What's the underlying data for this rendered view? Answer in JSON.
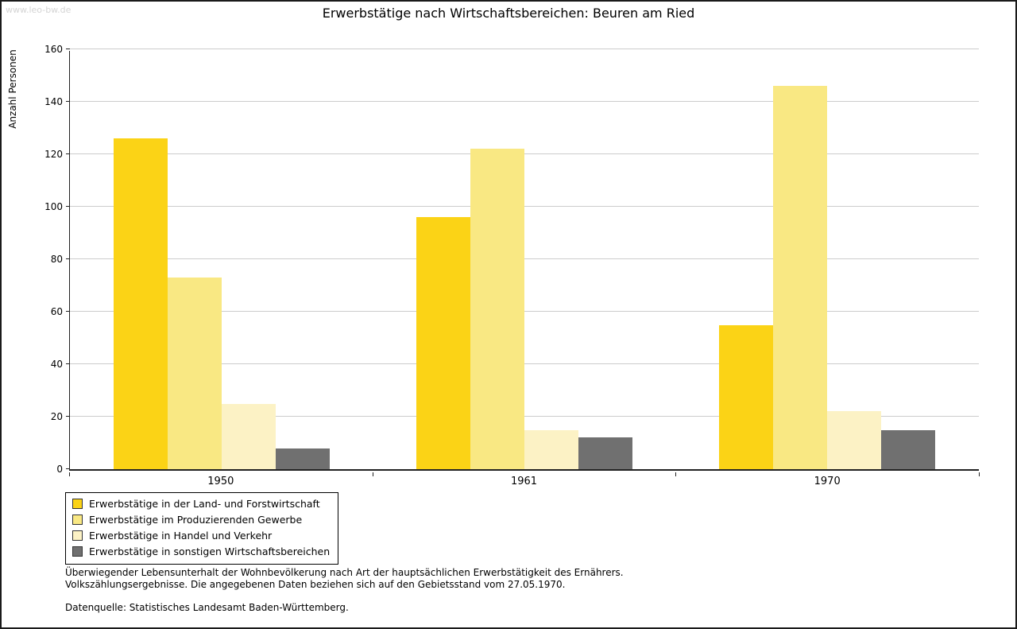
{
  "watermark": "www.leo-bw.de",
  "chart_data": {
    "type": "bar",
    "title": "Erwerbstätige nach Wirtschaftsbereichen: Beuren am Ried",
    "xlabel": "",
    "ylabel": "Anzahl Personen",
    "categories": [
      "1950",
      "1961",
      "1970"
    ],
    "series": [
      {
        "name": "Erwerbstätige in der Land- und Forstwirtschaft",
        "color": "#fbd316",
        "values": [
          126,
          96,
          55
        ]
      },
      {
        "name": "Erwerbstätige im Produzierenden Gewerbe",
        "color": "#f9e883",
        "values": [
          73,
          122,
          146
        ]
      },
      {
        "name": "Erwerbstätige in Handel und Verkehr",
        "color": "#fcf2c5",
        "values": [
          25,
          15,
          22
        ]
      },
      {
        "name": "Erwerbstätige in sonstigen Wirtschaftsbereichen",
        "color": "#707070",
        "values": [
          8,
          12,
          15
        ]
      }
    ],
    "ylim": [
      0,
      160
    ],
    "ytick_step": 20,
    "grid": true,
    "legend_position": "bottom-left"
  },
  "footnotes": {
    "line1": "Überwiegender Lebensunterhalt der Wohnbevölkerung nach Art der hauptsächlichen Erwerbstätigkeit des Ernährers.",
    "line2": "Volkszählungsergebnisse. Die angegebenen Daten beziehen sich auf den Gebietsstand vom 27.05.1970.",
    "source": "Datenquelle: Statistisches Landesamt Baden-Württemberg."
  }
}
